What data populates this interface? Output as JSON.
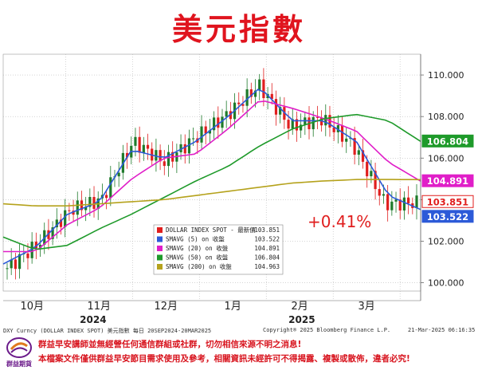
{
  "title": "美元指數",
  "chart_data": {
    "type": "line",
    "ylim": [
      99.6,
      111.0
    ],
    "yticks": [
      "110.000",
      "108.000",
      "106.000",
      "104.000",
      "102.000",
      "100.000"
    ],
    "ytick_values": [
      110,
      108,
      106,
      104,
      102,
      100
    ],
    "month_labels": [
      "10月",
      "11月",
      "12月",
      "1月",
      "2月",
      "3月"
    ],
    "year_labels": [
      "2024",
      "2025"
    ],
    "x": [
      "2024-09-20",
      "2024-10-04",
      "2024-10-18",
      "2024-11-01",
      "2024-11-15",
      "2024-11-29",
      "2024-12-13",
      "2024-12-27",
      "2025-01-10",
      "2025-01-24",
      "2025-02-07",
      "2025-02-21",
      "2025-03-07",
      "2025-03-21"
    ],
    "series": [
      {
        "name": "DOLLAR INDEX SPOT - 最新價",
        "color": "#e01e1e",
        "values": [
          100.7,
          101.9,
          103.5,
          104.0,
          106.8,
          105.8,
          107.0,
          108.1,
          109.5,
          107.5,
          107.9,
          106.6,
          103.8,
          103.851
        ]
      },
      {
        "name": "SMAVG (5) on 收盤",
        "color": "#2c5ad8",
        "values": [
          100.9,
          101.7,
          103.3,
          103.9,
          106.4,
          106.0,
          106.8,
          108.0,
          109.4,
          107.8,
          107.8,
          106.8,
          104.2,
          103.522
        ]
      },
      {
        "name": "SMAVG (20) on 收盤",
        "color": "#e01ec8",
        "values": [
          101.5,
          101.5,
          102.8,
          103.6,
          105.0,
          106.0,
          106.2,
          107.4,
          108.8,
          108.4,
          107.9,
          107.3,
          105.8,
          104.891
        ]
      },
      {
        "name": "SMAVG (50) on 收盤",
        "color": "#1e9a2a",
        "values": [
          102.2,
          101.6,
          101.8,
          102.6,
          103.3,
          104.1,
          104.9,
          105.6,
          106.6,
          107.4,
          107.9,
          108.1,
          107.8,
          106.804
        ]
      },
      {
        "name": "SMAVG (200) on 收盤",
        "color": "#b5a21c",
        "values": [
          103.8,
          103.7,
          103.7,
          103.8,
          103.9,
          104.0,
          104.2,
          104.4,
          104.6,
          104.8,
          104.9,
          104.97,
          104.97,
          104.963
        ]
      }
    ],
    "legend": {
      "placement": "bottom-center",
      "entries": [
        {
          "label": "DOLLAR INDEX SPOT - 最新價",
          "value": "103.851",
          "color": "#e01e1e"
        },
        {
          "label": "SMAVG (5)  on 收盤",
          "value": "103.522",
          "color": "#2c5ad8"
        },
        {
          "label": "SMAVG (20)  on 收盤",
          "value": "104.891",
          "color": "#e01ec8"
        },
        {
          "label": "SMAVG (50)  on 收盤",
          "value": "106.804",
          "color": "#1e9a2a"
        },
        {
          "label": "SMAVG (200)  on 收盤",
          "value": "104.963",
          "color": "#b5a21c"
        }
      ]
    },
    "last_value_tags": [
      {
        "value": "106.804",
        "y": 106.804,
        "color": "#1e9a2a"
      },
      {
        "value": "104.891",
        "y": 104.891,
        "color": "#e01ec8"
      },
      {
        "value": "103.851",
        "y": 103.851,
        "color": "#e01e1e"
      },
      {
        "value": "103.522",
        "y": 103.522,
        "color": "#2c5ad8"
      }
    ],
    "annotation": "+0.41%",
    "grid": true
  },
  "footer": {
    "left": "DXY Curncy (DOLLAR INDEX SPOT) 美元指數  每日 20SEP2024-20MAR2025",
    "center": "Copyright® 2025 Bloomberg Finance L.P.",
    "right": "21-Mar-2025 06:16:35"
  },
  "disclaimer": {
    "line1": "群益早安講師並無經營任何通信群組或社群，切勿相信來源不明之消息!",
    "line2": "本檔案文件僅供群益早安節目需求使用及參考，相關資訊未經許可不得揭露、複製或散佈，違者必究!"
  },
  "logo": {
    "text": "群益期貨"
  }
}
